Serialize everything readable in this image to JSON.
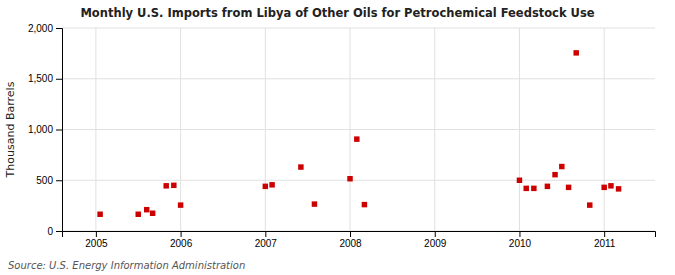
{
  "chart_data": {
    "type": "scatter",
    "title": "Monthly U.S. Imports from Libya of Other Oils for Petrochemical Feedstock Use",
    "ylabel": "Thousand Barrels",
    "annotation": "Source: U.S. Energy Information Administration",
    "x": [
      2005.05,
      2005.5,
      2005.6,
      2005.67,
      2005.83,
      2005.92,
      2006.0,
      2007.0,
      2007.08,
      2007.42,
      2007.58,
      2008.0,
      2008.08,
      2008.17,
      2010.0,
      2010.08,
      2010.17,
      2010.33,
      2010.42,
      2010.5,
      2010.58,
      2010.67,
      2010.83,
      2011.0,
      2011.08,
      2011.17
    ],
    "values": [
      165,
      165,
      210,
      175,
      445,
      450,
      255,
      440,
      455,
      630,
      265,
      515,
      905,
      260,
      500,
      420,
      420,
      440,
      555,
      635,
      430,
      1755,
      255,
      430,
      445,
      415
    ],
    "color": "#cc0000",
    "marker": "square",
    "xlim": [
      2004.6,
      2011.6
    ],
    "ylim": [
      0,
      2000
    ],
    "xticks": [
      2005,
      2006,
      2007,
      2008,
      2009,
      2010,
      2011
    ],
    "yticks": [
      0,
      500,
      {
        "value": 1000,
        "label": "1,000"
      },
      {
        "value": 1500,
        "label": "1,500"
      },
      {
        "value": 2000,
        "label": "2,000"
      }
    ],
    "grid": true
  }
}
